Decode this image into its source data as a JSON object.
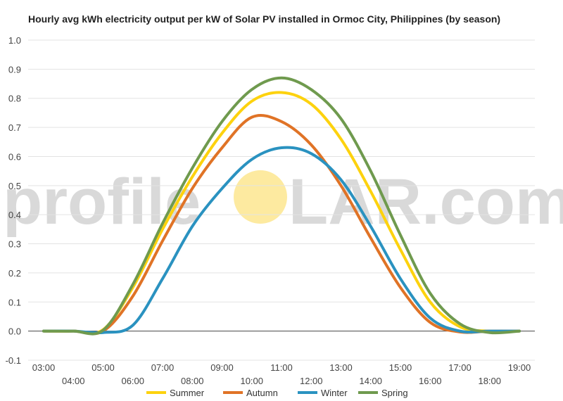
{
  "chart_data": {
    "type": "line",
    "title": "Hourly avg kWh electricity output per kW of Solar PV installed in Ormoc City, Philippines (by season)",
    "watermark": {
      "left": "profile",
      "right": "LAR.com",
      "sun_color": "#fdeaa0"
    },
    "xlabel": "",
    "ylabel": "",
    "ylim": [
      -0.1,
      1.0
    ],
    "yticks": [
      "-0.1",
      "0.0",
      "0.1",
      "0.2",
      "0.3",
      "0.4",
      "0.5",
      "0.6",
      "0.7",
      "0.8",
      "0.9",
      "1.0"
    ],
    "x_tick_labels": [
      "03:00",
      "04:00",
      "05:00",
      "06:00",
      "07:00",
      "08:00",
      "09:00",
      "10:00",
      "11:00",
      "12:00",
      "13:00",
      "14:00",
      "15:00",
      "16:00",
      "17:00",
      "18:00",
      "19:00"
    ],
    "legend_position": "bottom",
    "x": [
      3,
      4,
      5,
      6,
      7,
      8,
      9,
      10,
      11,
      12,
      13,
      14,
      15,
      16,
      17,
      18,
      19
    ],
    "series": [
      {
        "name": "Summer",
        "color": "#fdd20e",
        "values": [
          0.0,
          0.0,
          0.005,
          0.15,
          0.35,
          0.53,
          0.68,
          0.79,
          0.82,
          0.78,
          0.66,
          0.48,
          0.28,
          0.1,
          0.015,
          0.0,
          0.0
        ]
      },
      {
        "name": "Autumn",
        "color": "#e07326",
        "values": [
          0.0,
          0.0,
          0.0,
          0.12,
          0.31,
          0.49,
          0.63,
          0.735,
          0.72,
          0.64,
          0.5,
          0.32,
          0.15,
          0.03,
          -0.003,
          0.0,
          0.0
        ]
      },
      {
        "name": "Winter",
        "color": "#2a92c0",
        "values": [
          0.0,
          0.0,
          -0.005,
          0.02,
          0.18,
          0.36,
          0.49,
          0.59,
          0.63,
          0.61,
          0.52,
          0.36,
          0.18,
          0.045,
          0.0,
          0.0,
          0.0
        ]
      },
      {
        "name": "Spring",
        "color": "#6f9a4e",
        "values": [
          0.0,
          0.0,
          0.003,
          0.16,
          0.37,
          0.56,
          0.72,
          0.83,
          0.87,
          0.83,
          0.73,
          0.55,
          0.33,
          0.13,
          0.025,
          -0.005,
          0.0
        ]
      }
    ]
  }
}
